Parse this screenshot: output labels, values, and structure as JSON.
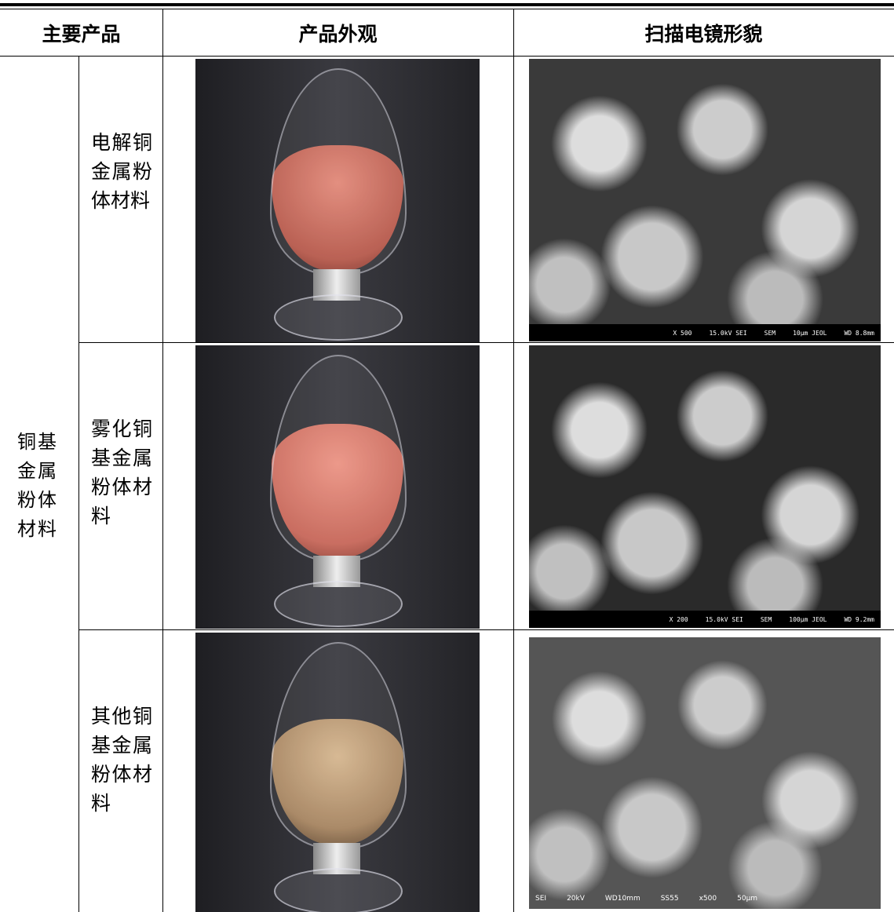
{
  "table": {
    "header": [
      "主要产品",
      "产品外观",
      "扫描电镜形貌"
    ],
    "group": "铜基金属粉体材料",
    "rows": [
      {
        "name": "电解铜金属粉体材料",
        "sem_caption": [
          "X 500",
          "15.0kV SEI",
          "SEM",
          "10μm JEOL",
          "WD 8.8mm"
        ]
      },
      {
        "name": "雾化铜基金属粉体材料",
        "sem_caption": [
          "X 200",
          "15.0kV SEI",
          "SEM",
          "100μm JEOL",
          "WD 9.2mm"
        ]
      },
      {
        "name": "其他铜基金属粉体材料",
        "sem_caption": [
          "SEI",
          "20kV",
          "WD10mm",
          "SS55",
          "x500",
          "50μm"
        ]
      }
    ]
  }
}
